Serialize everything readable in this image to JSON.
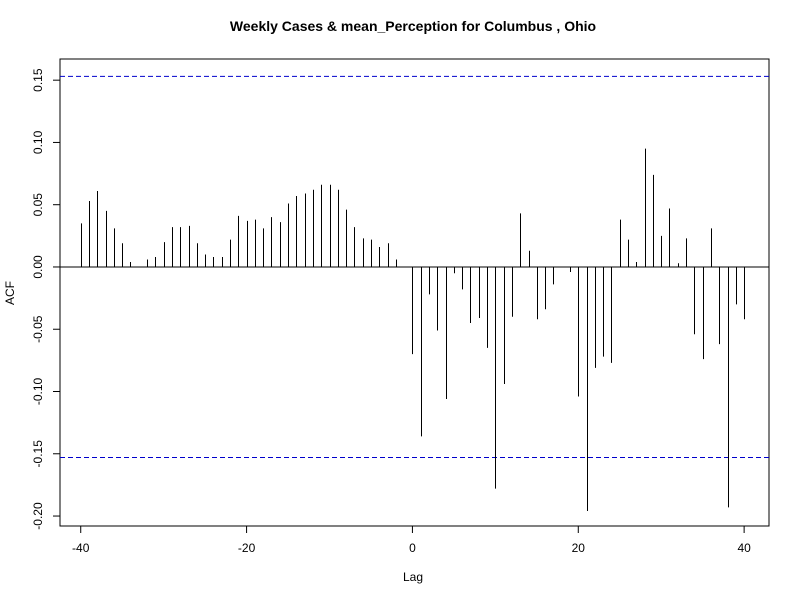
{
  "chart_data": {
    "type": "bar",
    "title": "Weekly Cases & mean_Perception for Columbus , Ohio",
    "xlabel": "Lag",
    "ylabel": "ACF",
    "xlim": [
      -42.5,
      43
    ],
    "ylim": [
      -0.208,
      0.167
    ],
    "x_ticks": [
      -40,
      -20,
      0,
      20,
      40
    ],
    "y_ticks": [
      -0.2,
      -0.15,
      -0.1,
      -0.05,
      0.0,
      0.05,
      0.1,
      0.15
    ],
    "x_tick_labels": [
      "-40",
      "-20",
      "0",
      "20",
      "40"
    ],
    "y_tick_labels": [
      "-0.20",
      "-0.15",
      "-0.10",
      "-0.05",
      "0.00",
      "0.05",
      "0.10",
      "0.15"
    ],
    "confidence_bound": 0.153,
    "colors": {
      "bars": "#000000",
      "bounds": "#0000cc",
      "axis": "#000000"
    },
    "x": [
      -40,
      -39,
      -38,
      -37,
      -36,
      -35,
      -34,
      -33,
      -32,
      -31,
      -30,
      -29,
      -28,
      -27,
      -26,
      -25,
      -24,
      -23,
      -22,
      -21,
      -20,
      -19,
      -18,
      -17,
      -16,
      -15,
      -14,
      -13,
      -12,
      -11,
      -10,
      -9,
      -8,
      -7,
      -6,
      -5,
      -4,
      -3,
      -2,
      -1,
      0,
      1,
      2,
      3,
      4,
      5,
      6,
      7,
      8,
      9,
      10,
      11,
      12,
      13,
      14,
      15,
      16,
      17,
      18,
      19,
      20,
      21,
      22,
      23,
      24,
      25,
      26,
      27,
      28,
      29,
      30,
      31,
      32,
      33,
      34,
      35,
      36,
      37,
      38,
      39,
      40
    ],
    "values": [
      0.035,
      0.053,
      0.061,
      0.045,
      0.031,
      0.019,
      0.004,
      0.0,
      0.006,
      0.008,
      0.02,
      0.032,
      0.032,
      0.033,
      0.019,
      0.01,
      0.008,
      0.008,
      0.022,
      0.041,
      0.037,
      0.038,
      0.031,
      0.04,
      0.036,
      0.051,
      0.057,
      0.059,
      0.062,
      0.066,
      0.066,
      0.062,
      0.046,
      0.032,
      0.023,
      0.022,
      0.016,
      0.019,
      0.006,
      0.0,
      -0.07,
      -0.136,
      -0.022,
      -0.051,
      -0.106,
      -0.005,
      -0.018,
      -0.045,
      -0.041,
      -0.065,
      -0.178,
      -0.094,
      -0.04,
      0.043,
      0.013,
      -0.042,
      -0.034,
      -0.014,
      0.0,
      -0.004,
      -0.104,
      -0.196,
      -0.081,
      -0.072,
      -0.077,
      0.038,
      0.022,
      0.004,
      0.095,
      0.074,
      0.025,
      0.047,
      0.003,
      0.023,
      -0.054,
      -0.074,
      0.031,
      -0.062,
      -0.193,
      -0.03,
      -0.042
    ]
  }
}
